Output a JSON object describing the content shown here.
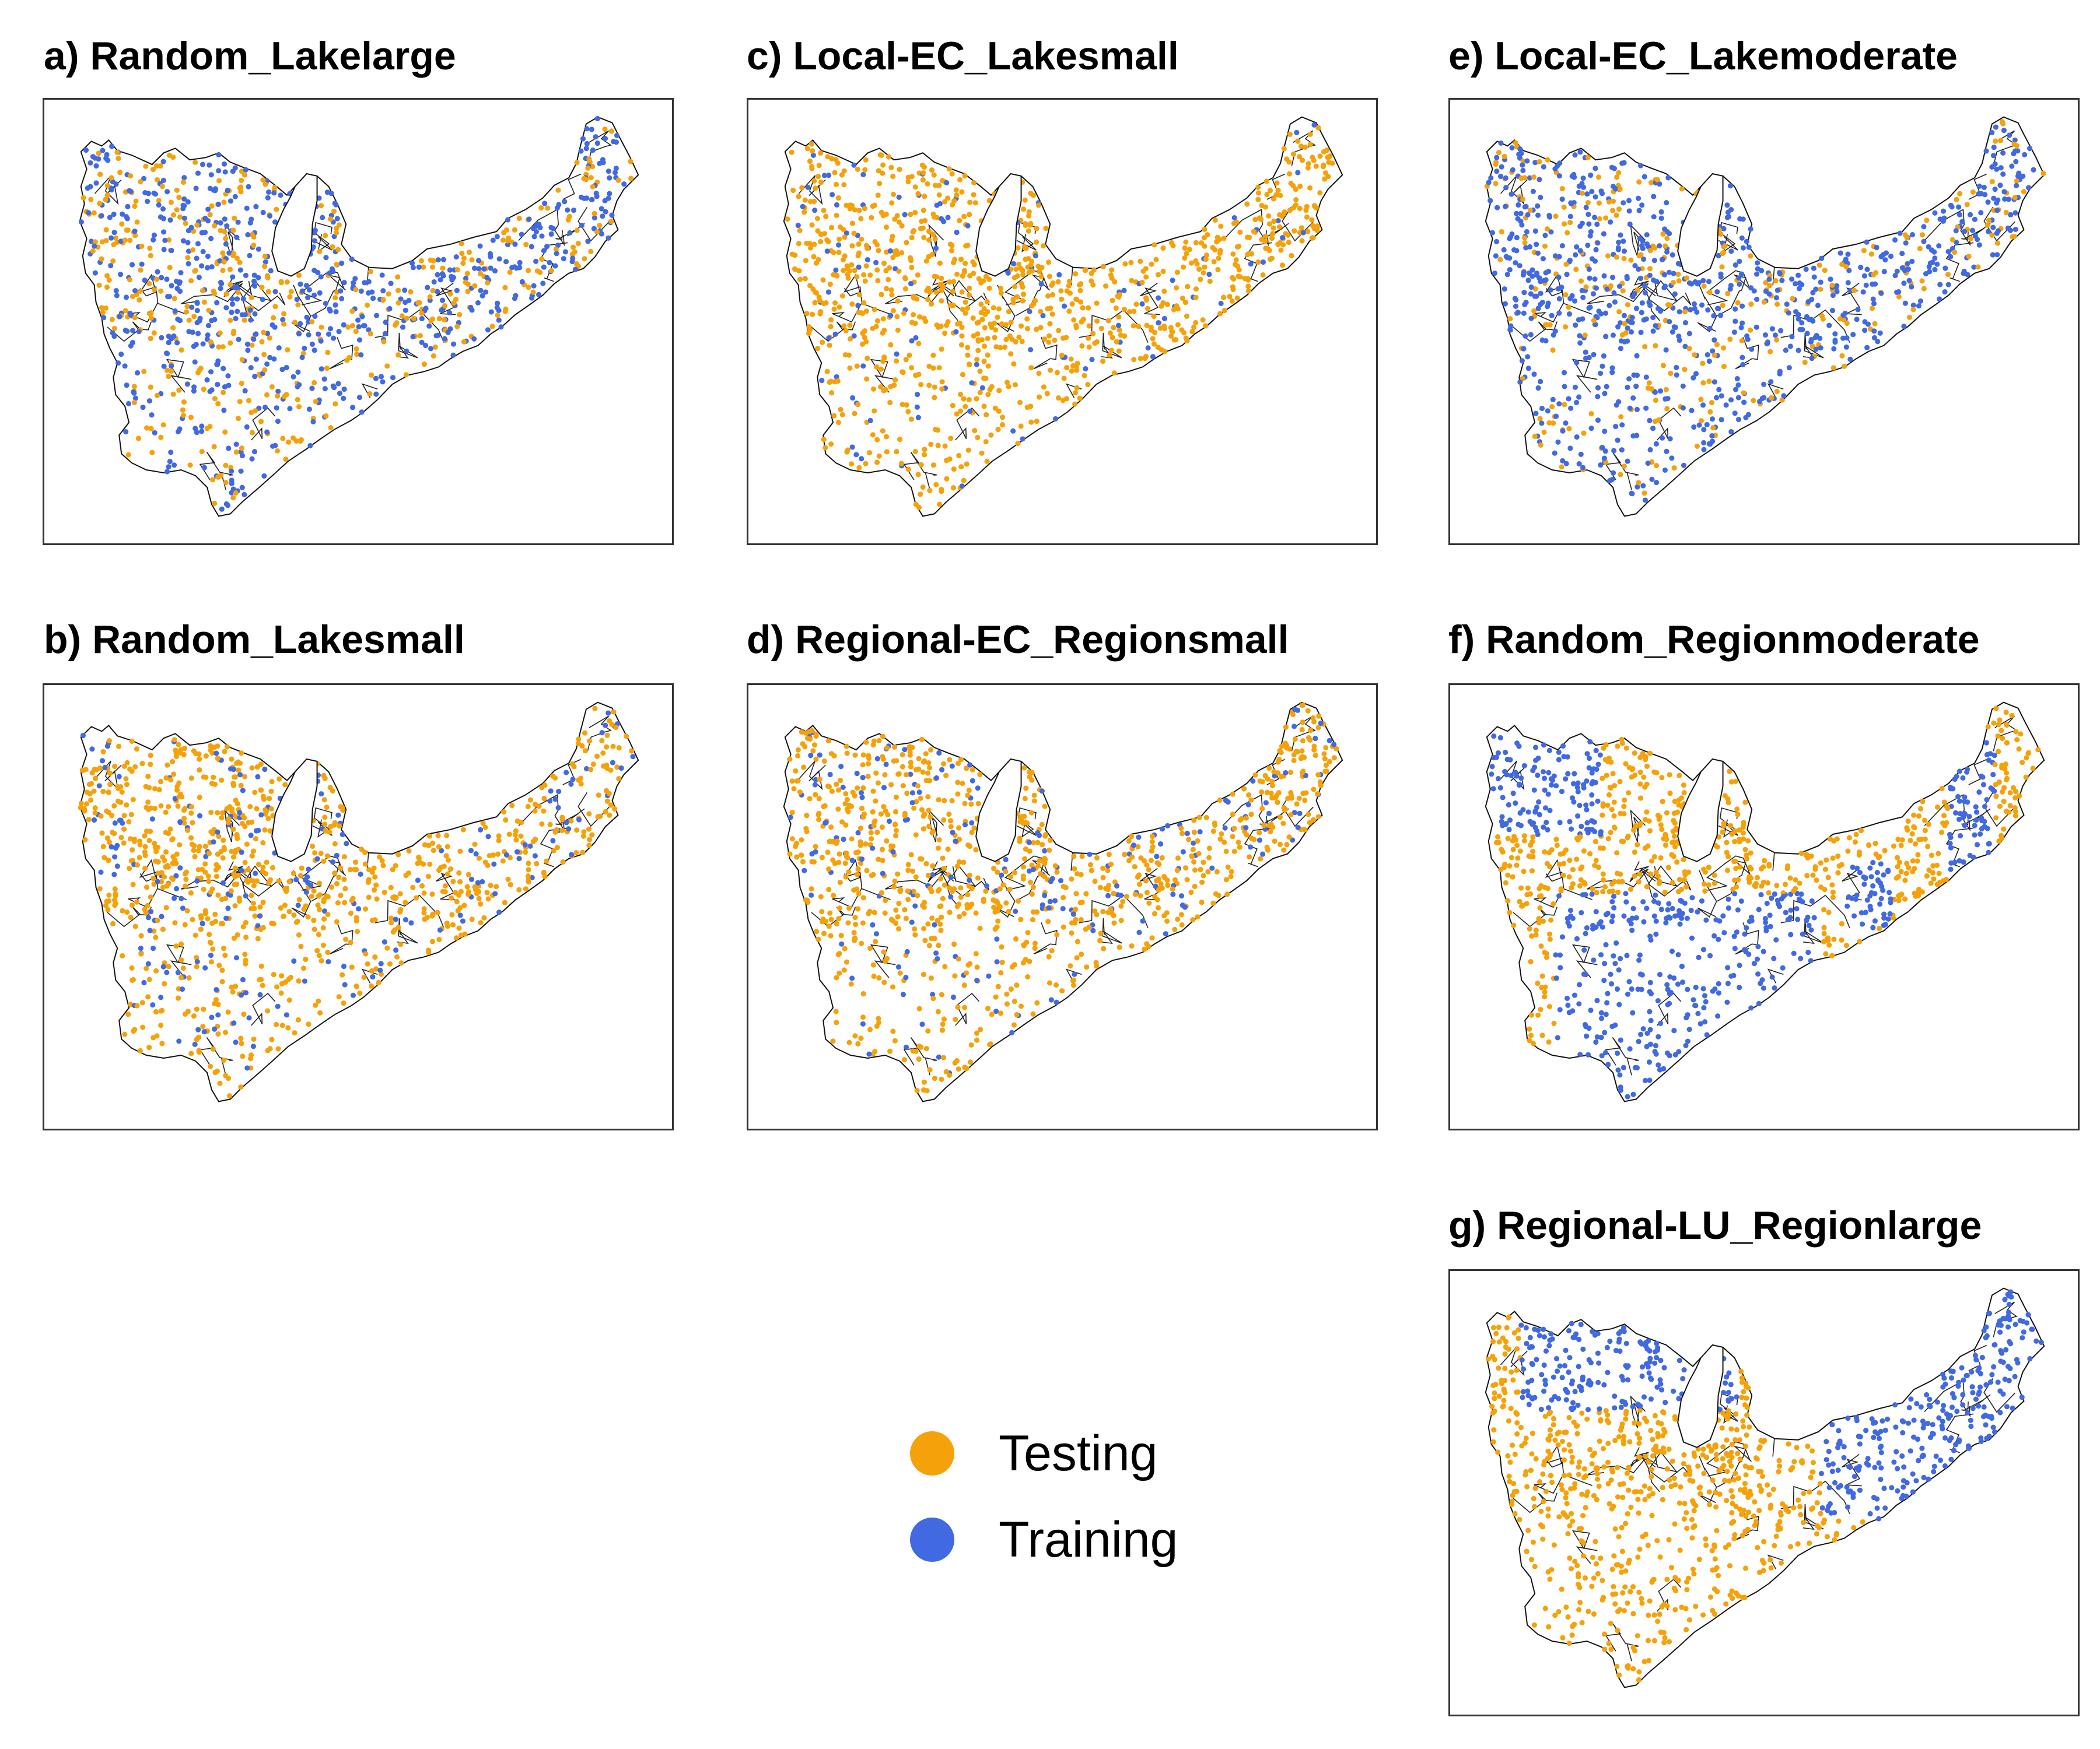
{
  "colors": {
    "testing": "#F5A20A",
    "training": "#4169E1",
    "outline": "#111111"
  },
  "panels": [
    {
      "id": "a",
      "title": "a) Random_Lakelarge",
      "pattern": "mix",
      "training_share": 0.6
    },
    {
      "id": "c",
      "title": "c) Local-EC_Lakesmall",
      "pattern": "mix",
      "training_share": 0.12
    },
    {
      "id": "e",
      "title": "e) Local-EC_Lakemoderate",
      "pattern": "mix",
      "training_share": 0.72
    },
    {
      "id": "b",
      "title": "b) Random_Lakesmall",
      "pattern": "mix",
      "training_share": 0.2
    },
    {
      "id": "d",
      "title": "d) Regional-EC_Regionsmall",
      "pattern": "mix",
      "training_share": 0.18
    },
    {
      "id": "f",
      "title": "f) Random_Regionmoderate",
      "pattern": "regionA"
    },
    {
      "id": "g",
      "title": "g) Regional-LU_Regionlarge",
      "pattern": "regionB"
    }
  ],
  "legend": [
    {
      "label": "Testing",
      "color": "#F5A20A"
    },
    {
      "label": "Training",
      "color": "#4169E1"
    }
  ]
}
